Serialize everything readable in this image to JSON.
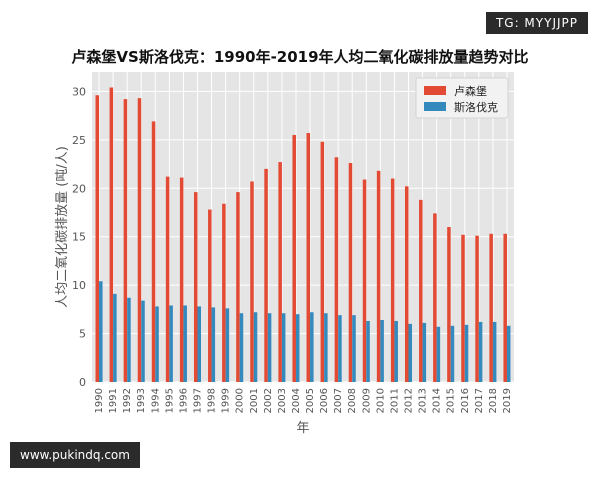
{
  "watermark_top": "TG: MYYJJPP",
  "watermark_bottom": "www.pukindq.com",
  "chart_data": {
    "type": "bar",
    "title": "卢森堡VS斯洛伐克：1990年-2019年人均二氧化碳排放量趋势对比",
    "xlabel": "年",
    "ylabel": "人均二氧化碳排放量 (吨/人)",
    "ylim": [
      0,
      32
    ],
    "yticks": [
      0,
      5,
      10,
      15,
      20,
      25,
      30
    ],
    "grid": true,
    "legend_position": "top-right",
    "categories": [
      "1990",
      "1991",
      "1992",
      "1993",
      "1994",
      "1995",
      "1996",
      "1997",
      "1998",
      "1999",
      "2000",
      "2001",
      "2002",
      "2003",
      "2004",
      "2005",
      "2006",
      "2007",
      "2008",
      "2009",
      "2010",
      "2011",
      "2012",
      "2013",
      "2014",
      "2015",
      "2016",
      "2017",
      "2018",
      "2019"
    ],
    "series": [
      {
        "name": "卢森堡",
        "color": "#e24a33",
        "values": [
          29.6,
          30.4,
          29.2,
          29.3,
          26.9,
          21.2,
          21.1,
          19.6,
          17.8,
          18.4,
          19.6,
          20.7,
          22.0,
          22.7,
          25.5,
          25.7,
          24.8,
          23.2,
          22.6,
          20.9,
          21.8,
          21.0,
          20.2,
          18.8,
          17.4,
          16.0,
          15.2,
          15.1,
          15.3,
          15.3
        ]
      },
      {
        "name": "斯洛伐克",
        "color": "#348abd",
        "values": [
          10.4,
          9.1,
          8.7,
          8.4,
          7.8,
          7.9,
          7.9,
          7.8,
          7.7,
          7.6,
          7.1,
          7.2,
          7.1,
          7.1,
          7.0,
          7.2,
          7.1,
          6.9,
          6.9,
          6.3,
          6.4,
          6.3,
          6.0,
          6.1,
          5.7,
          5.8,
          5.9,
          6.2,
          6.2,
          5.8
        ]
      }
    ]
  }
}
